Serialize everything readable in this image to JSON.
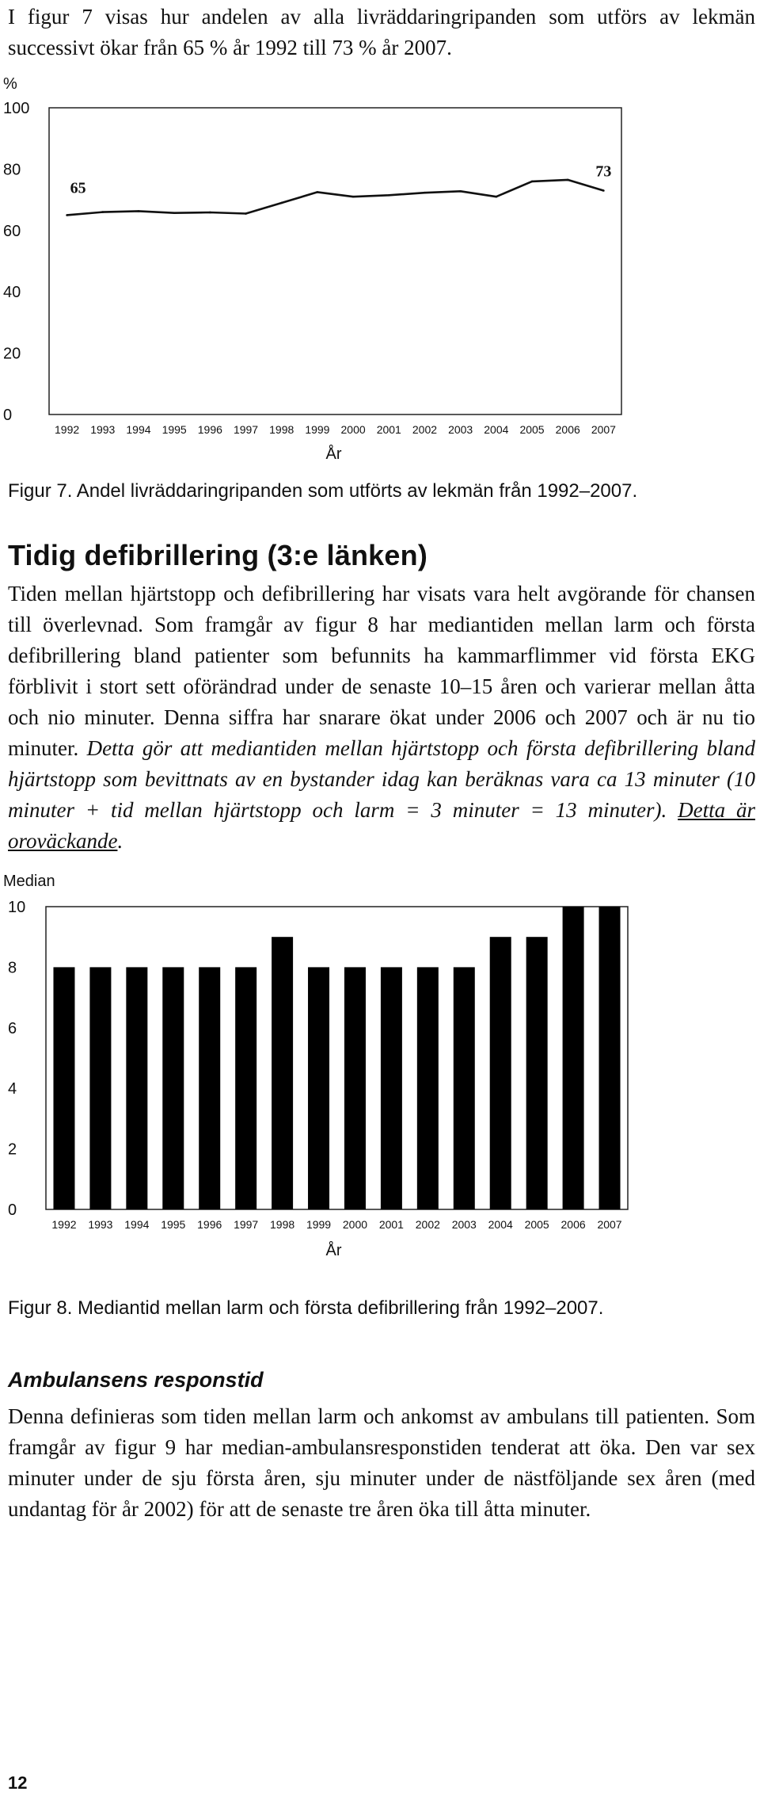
{
  "intro": {
    "text": "I figur 7 visas hur andelen av alla livräddaringripanden som utförs av lekmän successivt ökar från 65 % år 1992 till 73 % år 2007."
  },
  "figure7": {
    "caption": "Figur 7. Andel livräddaringripanden som utförts av lekmän från 1992–2007."
  },
  "section1": {
    "heading": "Tidig defibrillering (3:e länken)",
    "text_plain": "Tiden mellan hjärtstopp och defibrillering har visats vara helt avgörande för chansen till överlevnad. Som framgår av figur 8 har mediantiden mellan larm och första defibrillering bland patienter som befunnits ha kammarflimmer vid första EKG förblivit i stort sett oförändrad under de senaste 10–15 åren och varierar mellan åtta och nio minuter. Denna siffra har snarare ökat under 2006 och 2007 och är nu tio minuter.",
    "text_italic": "Detta gör att mediantiden mellan hjärtstopp och första defibrillering bland hjärtstopp som bevittnats av en bystander idag kan beräknas vara ca 13 minuter (10 minuter + tid mellan hjärtstopp och larm = 3 minuter = 13 minuter).",
    "text_underlined": "Detta är oroväckande",
    "text_period": "."
  },
  "figure8": {
    "caption": "Figur 8. Mediantid mellan larm och första defibrillering från 1992–2007."
  },
  "section2": {
    "heading": "Ambulansens responstid",
    "text": "Denna definieras som tiden mellan larm och ankomst av ambulans till patienten. Som framgår av figur 9 har median-ambulansresponstiden tenderat att öka. Den var sex minuter under de sju första åren, sju minuter under de nästföljande sex åren (med undantag för år 2002) för att de senaste tre åren öka till åtta minuter."
  },
  "page_number": "12",
  "chart_data": [
    {
      "type": "line",
      "title": "",
      "ylabel": "%",
      "xlabel": "År",
      "ylim": [
        0,
        100
      ],
      "yticks": [
        "0",
        "20",
        "40",
        "60",
        "80",
        "100"
      ],
      "categories": [
        "1992",
        "1993",
        "1994",
        "1995",
        "1996",
        "1997",
        "1998",
        "1999",
        "2000",
        "2001",
        "2002",
        "2003",
        "2004",
        "2005",
        "2006",
        "2007"
      ],
      "values": [
        65,
        66,
        66.3,
        65.7,
        65.9,
        65.5,
        69,
        72.5,
        71,
        71.5,
        72.3,
        72.8,
        71,
        76,
        76.5,
        73
      ],
      "annotations": [
        {
          "label": "65",
          "category": "1992"
        },
        {
          "label": "73",
          "category": "2007"
        }
      ],
      "grid": false
    },
    {
      "type": "bar",
      "title": "",
      "ylabel": "Median",
      "xlabel": "År",
      "ylim": [
        0,
        10
      ],
      "yticks": [
        "0",
        "2",
        "4",
        "6",
        "8",
        "10"
      ],
      "categories": [
        "1992",
        "1993",
        "1994",
        "1995",
        "1996",
        "1997",
        "1998",
        "1999",
        "2000",
        "2001",
        "2002",
        "2003",
        "2004",
        "2005",
        "2006",
        "2007"
      ],
      "values": [
        8,
        8,
        8,
        8,
        8,
        8,
        9,
        8,
        8,
        8,
        8,
        8,
        9,
        9,
        10,
        10
      ],
      "grid": false
    }
  ]
}
